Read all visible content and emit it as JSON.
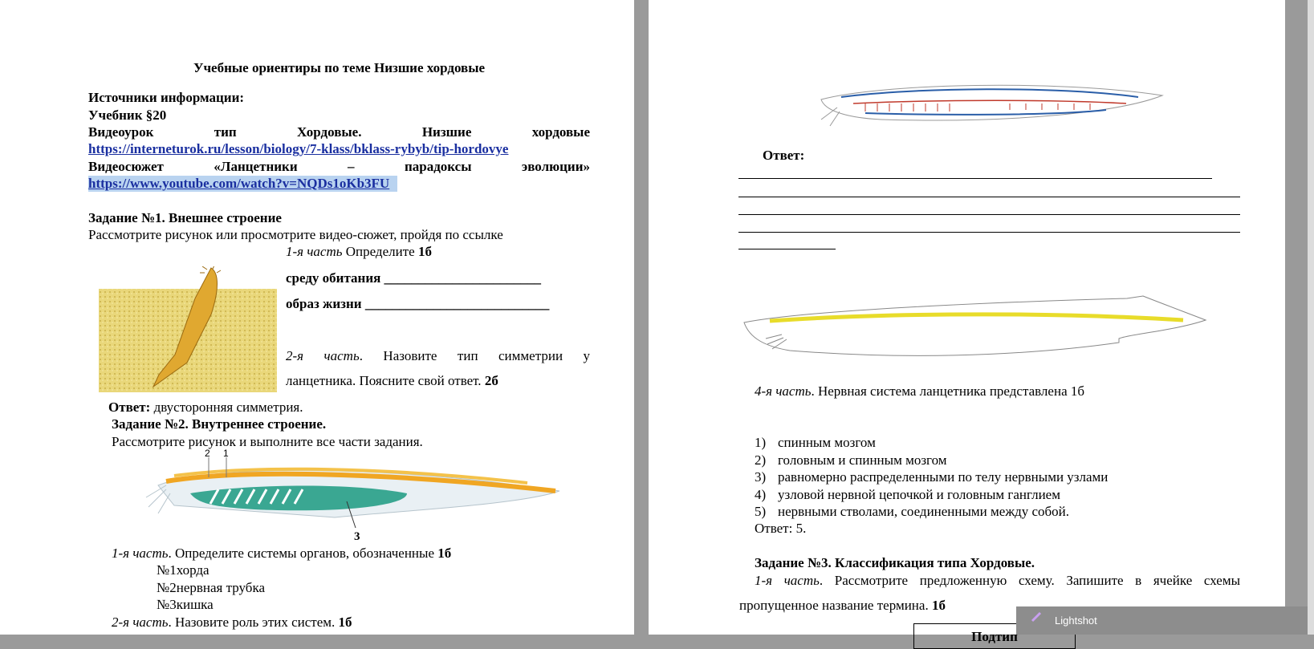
{
  "left_page": {
    "title": "Учебные ориентиры по теме Низшие хордовые",
    "sources_heading": "Источники информации:",
    "textbook": "Учебник §20",
    "video_lesson": "Видеоурок тип Хордовые. Низшие хордовые",
    "video_lesson_link": "https://interneturok.ru/lesson/biology/7-klass/bklass-rybyb/tip-hordovye",
    "video_story": "Видеосюжет «Ланцетники – парадоксы эволюции»",
    "video_story_link": "https://www.youtube.com/watch?v=NQDs1oKb3FU",
    "task1": {
      "heading": "Задание №1. Внешнее строение",
      "instruction": "Рассмотрите рисунок или просмотрите видео-сюжет, пройдя по ссылке",
      "part1": {
        "part": "1-я часть",
        "text": " Определите ",
        "points": "1б"
      },
      "habitat": "среду обитания _______________________",
      "lifestyle": "образ жизни ___________________________",
      "part2_line1": {
        "part": "2-я часть",
        "text": ". Назовите тип симметрии у"
      },
      "part2_line2": {
        "text": "ланцетника. Поясните свой ответ. ",
        "points": "2б"
      },
      "answer": {
        "label": "Ответ:",
        "text": " двусторонняя симметрия."
      }
    },
    "task2": {
      "heading": "Задание №2. Внутреннее строение.",
      "instruction": "Рассмотрите рисунок и выполните все части задания.",
      "figure_labels": [
        "2",
        "1",
        "3"
      ],
      "part1": {
        "part": "1-я часть",
        "text": ". Определите системы органов, обозначенные ",
        "points": "1б"
      },
      "items": [
        "№1хорда",
        "№2нервная трубка",
        "№3кишка"
      ],
      "part2": {
        "part": "2-я часть",
        "text": ". Назовите роль этих систем. ",
        "points": "1б"
      }
    }
  },
  "right_page": {
    "answer_label": "Ответ:",
    "part4": {
      "part": "4-я часть",
      "text": ". Нервная система ланцетника представлена 1б"
    },
    "options": [
      {
        "number": "1)",
        "text": "спинным мозгом"
      },
      {
        "number": "2)",
        "text": "головным и спинным мозгом"
      },
      {
        "number": "3)",
        "text": "равномерно распределенными по телу нервными узлами"
      },
      {
        "number": "4)",
        "text": "узловой нервной цепочкой и головным ганглием"
      },
      {
        "number": "5)",
        "text": "нервными стволами, соединенными между собой."
      }
    ],
    "answer": "Ответ: 5.",
    "task3": {
      "heading": "Задание №3. Классификация типа Хордовые.",
      "line1": {
        "part": "1-я часть",
        "text": ". Рассмотрите предложенную схему. Запишите в ячейке схемы"
      },
      "line2": {
        "text": "пропущенное название термина. ",
        "points": "1б"
      },
      "scheme_box": "Подтип"
    }
  },
  "popup": {
    "title": "Lightshot"
  }
}
